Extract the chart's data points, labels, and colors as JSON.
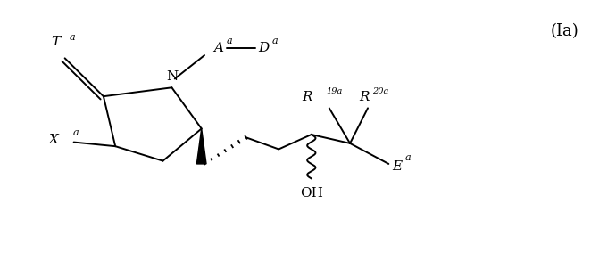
{
  "figsize": [
    6.71,
    3.02
  ],
  "dpi": 100,
  "bg_color": "#ffffff",
  "label_Ia": "(Ia)",
  "label_Ia_fontsize": 13,
  "lw": 1.4,
  "fs_main": 11,
  "fs_super": 8,
  "xlim": [
    0,
    10
  ],
  "ylim": [
    0,
    4.5
  ]
}
